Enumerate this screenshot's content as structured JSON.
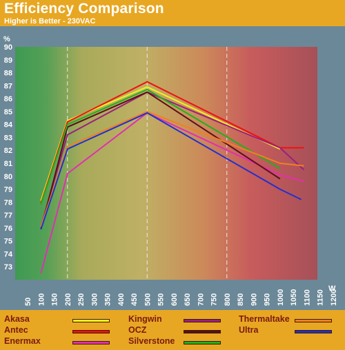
{
  "chart_data": {
    "type": "line",
    "title": "Efficiency Comparison",
    "subtitle": "Higher is Better - 230VAC",
    "ylabel": "%",
    "xlabel": "W",
    "ylim": [
      72,
      90
    ],
    "y_ticks": [
      73,
      74,
      75,
      76,
      77,
      78,
      79,
      80,
      81,
      82,
      83,
      84,
      85,
      86,
      87,
      88,
      89,
      90
    ],
    "x_ticks": [
      50,
      100,
      150,
      200,
      250,
      300,
      350,
      400,
      450,
      500,
      550,
      600,
      650,
      700,
      750,
      800,
      850,
      900,
      950,
      1000,
      1050,
      1100,
      1150,
      1200
    ],
    "series": [
      {
        "name": "Akasa",
        "color": "#f0f020",
        "points": [
          [
            100,
            78.1
          ],
          [
            200,
            84.3
          ],
          [
            500,
            86.9
          ],
          [
            1000,
            82.1
          ]
        ]
      },
      {
        "name": "Antec",
        "color": "#f01010",
        "points": [
          [
            100,
            77.9
          ],
          [
            200,
            84.2
          ],
          [
            500,
            87.3
          ],
          [
            1000,
            82.2
          ],
          [
            1090,
            82.2
          ]
        ]
      },
      {
        "name": "Enermax",
        "color": "#e030b0",
        "points": [
          [
            100,
            72.5
          ],
          [
            200,
            80.2
          ],
          [
            500,
            84.9
          ],
          [
            1000,
            80.1
          ],
          [
            1090,
            79.6
          ]
        ]
      },
      {
        "name": "Kingwin",
        "color": "#9a2080",
        "points": [
          [
            100,
            76.1
          ],
          [
            200,
            83.2
          ],
          [
            500,
            86.5
          ],
          [
            1000,
            82.2
          ],
          [
            1090,
            80.5
          ]
        ]
      },
      {
        "name": "OCZ",
        "color": "#5a1018",
        "points": [
          [
            100,
            75.9
          ],
          [
            200,
            83.8
          ],
          [
            500,
            86.5
          ],
          [
            1000,
            79.8
          ]
        ]
      },
      {
        "name": "Silverstone",
        "color": "#20b020",
        "points": [
          [
            100,
            77.8
          ],
          [
            200,
            84.0
          ],
          [
            500,
            86.7
          ],
          [
            1000,
            80.6
          ]
        ]
      },
      {
        "name": "Thermaltake",
        "color": "#f08020",
        "points": [
          [
            100,
            76.1
          ],
          [
            200,
            82.3
          ],
          [
            500,
            85.0
          ],
          [
            1000,
            81.0
          ],
          [
            1090,
            80.8
          ]
        ]
      },
      {
        "name": "Ultra",
        "color": "#2030d0",
        "points": [
          [
            100,
            75.9
          ],
          [
            200,
            82.1
          ],
          [
            500,
            84.9
          ],
          [
            1000,
            79.0
          ],
          [
            1080,
            78.2
          ]
        ]
      }
    ],
    "dashed_vertical_gridlines_x": [
      200,
      500,
      800
    ],
    "background_gradient": [
      "#3c9c50",
      "#b8b060",
      "#d06060",
      "#a85058"
    ],
    "legend_position": "bottom"
  }
}
